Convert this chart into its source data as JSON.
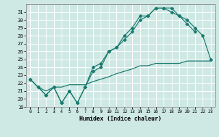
{
  "xlabel": "Humidex (Indice chaleur)",
  "xlim": [
    -0.5,
    23.5
  ],
  "ylim": [
    19,
    32
  ],
  "yticks": [
    19,
    20,
    21,
    22,
    23,
    24,
    25,
    26,
    27,
    28,
    29,
    30,
    31
  ],
  "xticks": [
    0,
    1,
    2,
    3,
    4,
    5,
    6,
    7,
    8,
    9,
    10,
    11,
    12,
    13,
    14,
    15,
    16,
    17,
    18,
    19,
    20,
    21,
    22,
    23
  ],
  "bg_color": "#cee8e4",
  "grid_color": "#ffffff",
  "line_color": "#1a7a6e",
  "series": [
    {
      "x": [
        0,
        1,
        2,
        3,
        4,
        5,
        6,
        7,
        8,
        9,
        10,
        11,
        12,
        13,
        14,
        15,
        16,
        17,
        18,
        19,
        20,
        21,
        22,
        23
      ],
      "y": [
        22.5,
        21.5,
        21.0,
        21.5,
        21.5,
        21.8,
        21.8,
        21.8,
        22.2,
        22.5,
        22.8,
        23.2,
        23.5,
        23.8,
        24.2,
        24.2,
        24.5,
        24.5,
        24.5,
        24.5,
        24.8,
        24.8,
        24.8,
        24.8
      ],
      "marker": null,
      "lw": 0.9,
      "ls": "-"
    },
    {
      "x": [
        0,
        1,
        2,
        3,
        4,
        5,
        6,
        7,
        8,
        9,
        10,
        11,
        12,
        13,
        14,
        15,
        16,
        17,
        18,
        19,
        20,
        21,
        22,
        23
      ],
      "y": [
        22.5,
        21.5,
        20.5,
        21.5,
        19.5,
        21.0,
        19.5,
        21.5,
        23.5,
        24.0,
        26.0,
        26.5,
        27.5,
        28.5,
        30.0,
        30.5,
        31.5,
        31.5,
        31.5,
        30.5,
        29.5,
        28.5,
        null,
        null
      ],
      "marker": "D",
      "markersize": 2.5,
      "lw": 0.9,
      "ls": "-"
    },
    {
      "x": [
        0,
        1,
        2,
        3,
        4,
        5,
        6,
        7,
        8,
        9,
        10,
        11,
        12,
        13,
        14,
        15,
        16,
        17,
        18,
        19,
        20,
        21,
        22,
        23
      ],
      "y": [
        22.5,
        21.5,
        20.5,
        21.5,
        19.5,
        21.0,
        19.5,
        21.5,
        24.0,
        24.5,
        26.0,
        26.5,
        28.0,
        29.0,
        30.5,
        30.5,
        31.5,
        31.5,
        31.0,
        30.5,
        30.0,
        29.0,
        28.0,
        25.0
      ],
      "marker": "D",
      "markersize": 2.5,
      "lw": 0.9,
      "ls": "-"
    }
  ]
}
